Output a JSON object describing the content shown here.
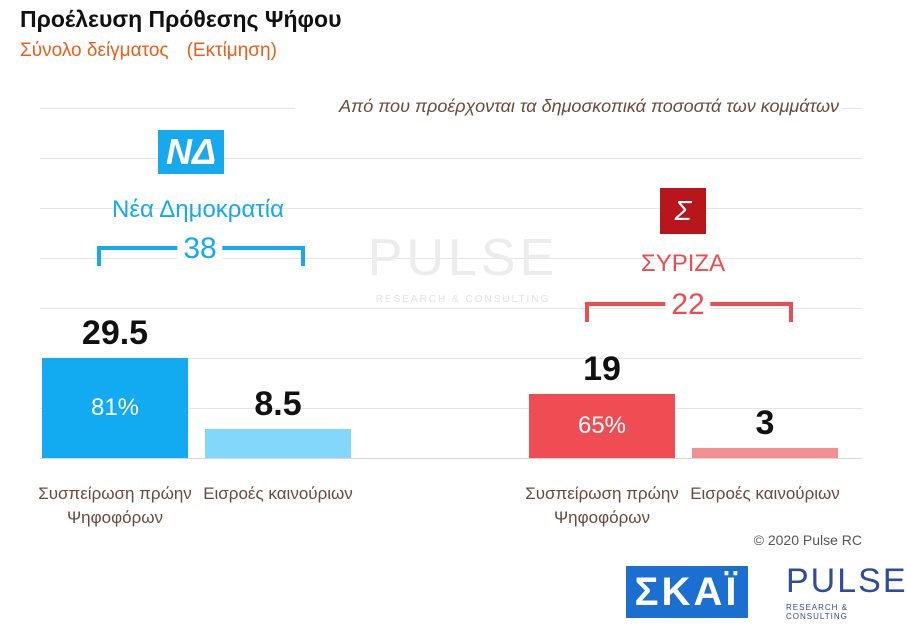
{
  "header": {
    "title": "Προέλευση Πρόθεσης Ψήφου",
    "subtitle": "Σύνολο δείγματος",
    "subtitle_note": "(Εκτίμηση)"
  },
  "chart_data": {
    "type": "grouped-bar",
    "annotation": "Από που προέρχονται τα δημοσκοπικά ποσοστά των κομμάτων",
    "ylim": [
      0,
      103.2
    ],
    "groups": [
      {
        "name": "Νέα Δημοκρατία",
        "logo": "ΝΔ",
        "total": 38,
        "color": "#16a9ee",
        "categories": [
          "Συσπείρωση πρώην Ψηφοφόρων",
          "Εισροές καινούριων"
        ],
        "values": [
          29.5,
          8.5
        ],
        "colors": [
          "#12aaf0",
          "#82d7fb"
        ],
        "share_label": "81%"
      },
      {
        "name": "ΣΥΡΙΖΑ",
        "logo": "Σ",
        "total": 22,
        "color": "#ef4b52",
        "categories": [
          "Συσπείρωση πρώην Ψηφοφόρων",
          "Εισροές καινούριων"
        ],
        "values": [
          19,
          3
        ],
        "colors": [
          "#f04c53",
          "#f59090"
        ],
        "share_label": "65%"
      }
    ]
  },
  "footer": {
    "copyright": "© 2020 Pulse RC",
    "skai": "ΣΚΑΪ",
    "pulse": "PULSE",
    "pulse_tagline": "RESEARCH & CONSULTING"
  }
}
